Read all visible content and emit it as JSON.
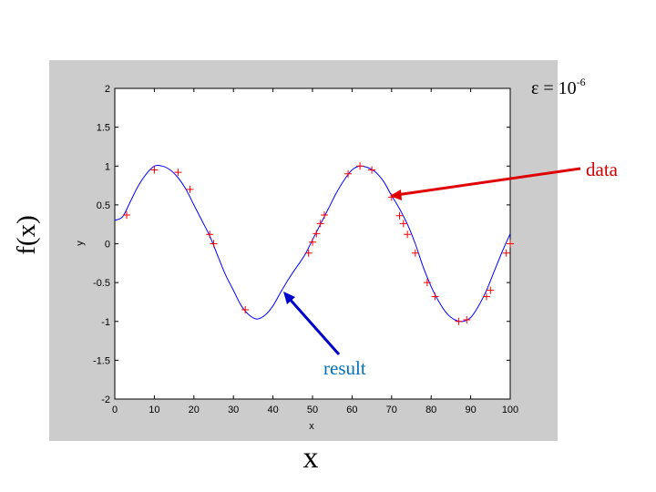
{
  "slide": {
    "epsilon_text": "ε = 10",
    "epsilon_exponent": "-6",
    "outer_xlabel": "x",
    "outer_ylabel": "f(x)",
    "data_annotation": "data",
    "result_annotation": "result"
  },
  "colors": {
    "panel": "#cccccc",
    "curve": "#0000ff",
    "markers": "#ff0000",
    "data_arrow": "#e00000",
    "data_text": "#cc0000",
    "result_arrow": "#0000cc",
    "result_text": "#0070c0"
  },
  "chart_data": {
    "type": "scatter",
    "title": "",
    "xlabel": "x",
    "ylabel": "y",
    "xlim": [
      0,
      100
    ],
    "ylim": [
      -2,
      2
    ],
    "xticks": [
      0,
      10,
      20,
      30,
      40,
      50,
      60,
      70,
      80,
      90,
      100
    ],
    "yticks": [
      2,
      1.5,
      1,
      0.5,
      0,
      -0.5,
      -1,
      -1.5,
      -2
    ],
    "xtick_labels": [
      "0",
      "10",
      "20",
      "30",
      "40",
      "50",
      "60",
      "70",
      "80",
      "90",
      "100"
    ],
    "ytick_labels": [
      "2",
      "1.5",
      "1",
      "0.5",
      "0",
      "-0.5",
      "-1",
      "-1.5",
      "-2"
    ],
    "grid": false,
    "series": [
      {
        "kind": "line",
        "x": [
          0,
          2,
          4,
          6,
          8,
          10,
          12,
          14,
          16,
          18,
          20,
          22,
          24,
          26,
          28,
          30,
          32,
          34,
          36,
          38,
          40,
          42,
          44,
          46,
          48,
          50,
          52,
          54,
          56,
          58,
          60,
          62,
          64,
          66,
          68,
          70,
          72,
          74,
          76,
          78,
          80,
          82,
          84,
          86,
          88,
          90,
          92,
          94,
          96,
          98,
          100
        ],
        "y": [
          0.3,
          0.35,
          0.55,
          0.75,
          0.9,
          1.0,
          1.0,
          0.95,
          0.85,
          0.7,
          0.5,
          0.3,
          0.1,
          -0.15,
          -0.4,
          -0.6,
          -0.8,
          -0.92,
          -0.97,
          -0.92,
          -0.8,
          -0.62,
          -0.45,
          -0.3,
          -0.15,
          0.05,
          0.25,
          0.45,
          0.65,
          0.82,
          0.95,
          1.0,
          0.98,
          0.92,
          0.8,
          0.62,
          0.45,
          0.25,
          0.0,
          -0.3,
          -0.55,
          -0.75,
          -0.9,
          -0.98,
          -1.0,
          -0.95,
          -0.8,
          -0.6,
          -0.35,
          -0.1,
          0.13
        ]
      },
      {
        "kind": "markers",
        "marker": "+",
        "x": [
          3,
          10,
          16,
          19,
          24,
          25,
          33,
          49,
          50,
          51,
          52,
          53,
          59,
          62,
          65,
          70,
          72,
          73,
          74,
          76,
          79,
          81,
          87,
          89,
          94,
          95,
          99,
          100
        ],
        "y": [
          0.37,
          0.95,
          0.92,
          0.7,
          0.12,
          0.0,
          -0.85,
          -0.12,
          0.02,
          0.13,
          0.26,
          0.37,
          0.9,
          1.0,
          0.95,
          0.6,
          0.36,
          0.26,
          0.12,
          -0.12,
          -0.5,
          -0.68,
          -1.0,
          -0.98,
          -0.68,
          -0.6,
          -0.12,
          0.0
        ]
      }
    ]
  }
}
